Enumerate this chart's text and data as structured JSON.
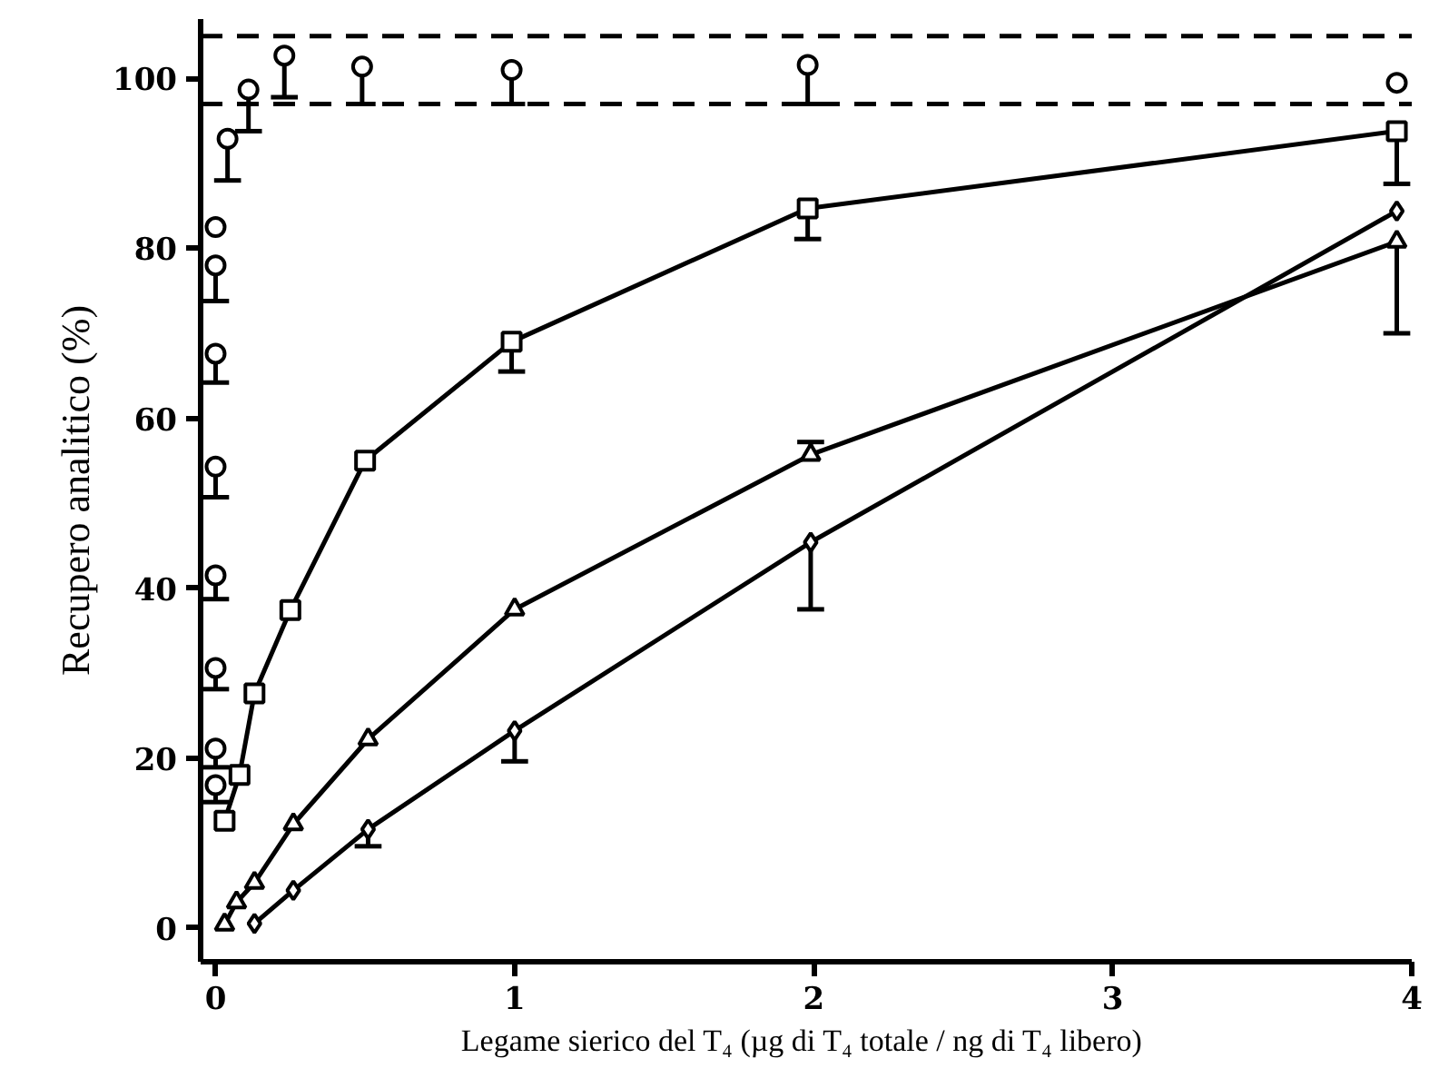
{
  "chart_data": {
    "type": "line",
    "xlabel": "Legame  sierico del T₄ (µg di T₄ totale / ng di T₄ libero)",
    "ylabel": "Recupero analitico (%)",
    "xlim": [
      -0.05,
      4
    ],
    "ylim": [
      -4,
      107
    ],
    "xticks": [
      0,
      1,
      2,
      3,
      4
    ],
    "yticks": [
      0,
      20,
      40,
      60,
      80,
      100
    ],
    "grid": false,
    "ref_lines": [
      {
        "axis": "y",
        "value": 105,
        "line_style": "dashed",
        "color": "#000000"
      },
      {
        "axis": "y",
        "value": 97,
        "line_style": "dashed",
        "color": "#000000"
      }
    ],
    "series": [
      {
        "type": "scatter",
        "marker": "circle",
        "color": "#000000",
        "x": [
          0,
          0,
          0,
          0,
          0,
          0,
          0,
          0,
          0.04,
          0.11,
          0.23,
          0.49,
          0.99,
          1.98,
          3.95
        ],
        "values": [
          16.8,
          21.1,
          30.6,
          41.5,
          54.3,
          67.6,
          78,
          82.5,
          92.9,
          98.7,
          102.7,
          101.4,
          101,
          101.6,
          99.5
        ],
        "errors": [
          [
            14.8,
            16.8
          ],
          [
            18.9,
            21.1
          ],
          [
            28.1,
            30.6
          ],
          [
            38.7,
            41.5
          ],
          [
            50.7,
            54.3
          ],
          [
            64.2,
            67.6
          ],
          [
            73.8,
            78
          ],
          null,
          [
            88,
            92.9
          ],
          [
            93.8,
            98.7
          ],
          [
            97.8,
            102.7
          ],
          [
            97,
            101.4
          ],
          [
            97,
            101
          ],
          [
            97,
            101.6
          ],
          null
        ]
      },
      {
        "marker": "square",
        "color": "#000000",
        "x": [
          0.03,
          0.08,
          0.13,
          0.25,
          0.5,
          0.99,
          1.98,
          3.95
        ],
        "values": [
          12.6,
          18,
          27.6,
          37.4,
          55,
          69,
          84.7,
          93.8
        ],
        "errors": [
          null,
          null,
          null,
          null,
          null,
          [
            65.5,
            69
          ],
          [
            81.1,
            84.7
          ],
          [
            87.6,
            93.8
          ]
        ]
      },
      {
        "marker": "triangle",
        "color": "#000000",
        "x": [
          0.03,
          0.07,
          0.13,
          0.26,
          0.51,
          1.0,
          1.99,
          3.95
        ],
        "values": [
          0.4,
          3,
          5.3,
          12.2,
          22.2,
          37.5,
          55.7,
          80.8
        ],
        "errors": [
          null,
          null,
          null,
          null,
          null,
          null,
          [
            55.7,
            57.2
          ],
          [
            70,
            80.8
          ]
        ]
      },
      {
        "marker": "diamond",
        "color": "#000000",
        "x": [
          0.13,
          0.26,
          0.51,
          1.0,
          1.99,
          3.95
        ],
        "values": [
          0.5,
          4.4,
          11.6,
          23.2,
          45.4,
          84.4
        ],
        "errors": [
          null,
          null,
          [
            9.6,
            11.6
          ],
          [
            19.6,
            23.2
          ],
          [
            37.5,
            45.4
          ],
          null
        ]
      }
    ]
  }
}
